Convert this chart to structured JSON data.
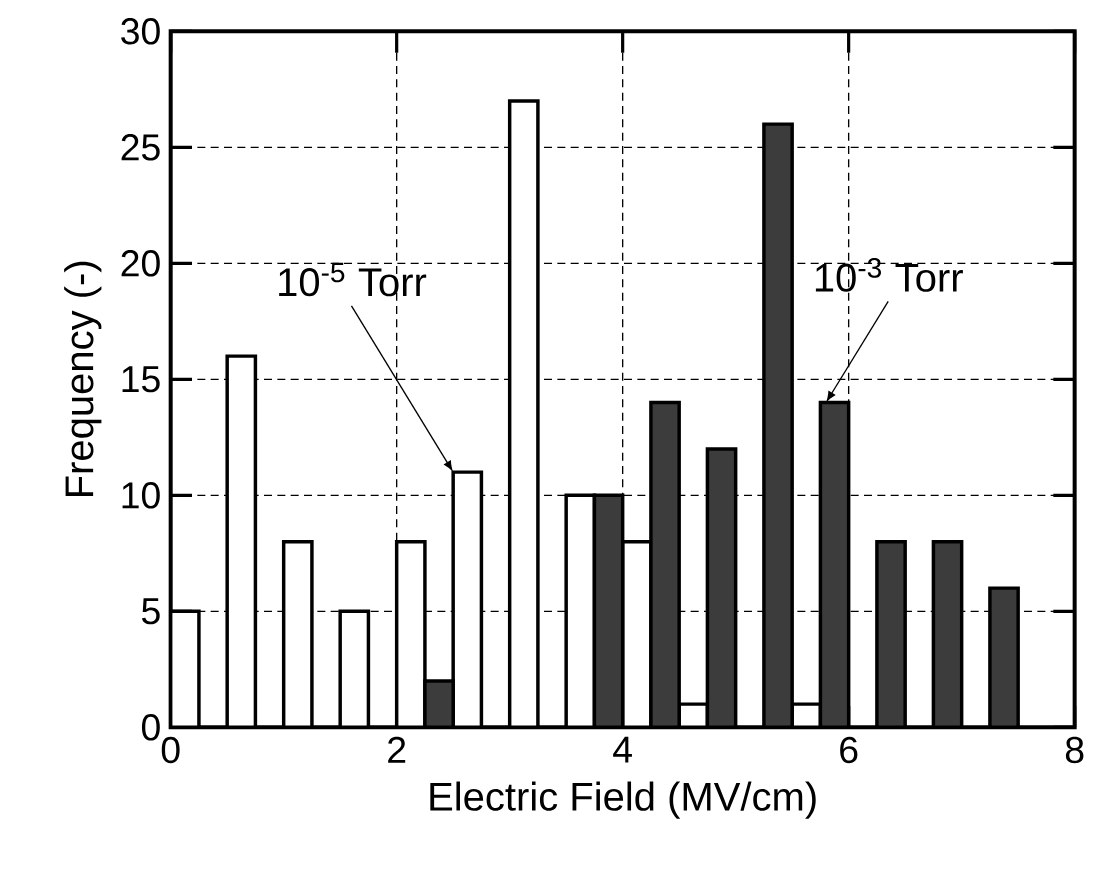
{
  "chart_data": {
    "type": "bar",
    "xlabel": "Electric Field (MV/cm)",
    "ylabel": "Frequency (-)",
    "x": [
      0.25,
      0.75,
      1.25,
      1.75,
      2.25,
      2.75,
      3.25,
      3.75,
      4.25,
      4.75,
      5.25,
      5.75,
      6.25,
      6.75,
      7.25
    ],
    "series": [
      {
        "color": "#ffffff",
        "values": [
          5,
          16,
          8,
          5,
          8,
          11,
          27,
          10,
          8,
          1,
          null,
          1,
          null,
          null,
          null
        ]
      },
      {
        "color": "#3c3c3c",
        "values": [
          null,
          null,
          null,
          null,
          2,
          null,
          null,
          10,
          14,
          12,
          26,
          14,
          8,
          8,
          6
        ]
      }
    ],
    "xlim": [
      0,
      8
    ],
    "xticks": [
      0,
      2,
      4,
      6,
      8
    ],
    "ylim": [
      0,
      30
    ],
    "yticks": [
      0,
      5,
      10,
      15,
      20,
      25,
      30
    ],
    "grid": true,
    "annotations": [
      {
        "text": "10$^{-5}$ Torr",
        "x": 2.5,
        "y": 11
      },
      {
        "text": "10$^{-3}$ Torr",
        "x": 5.8,
        "y": 14
      }
    ]
  }
}
